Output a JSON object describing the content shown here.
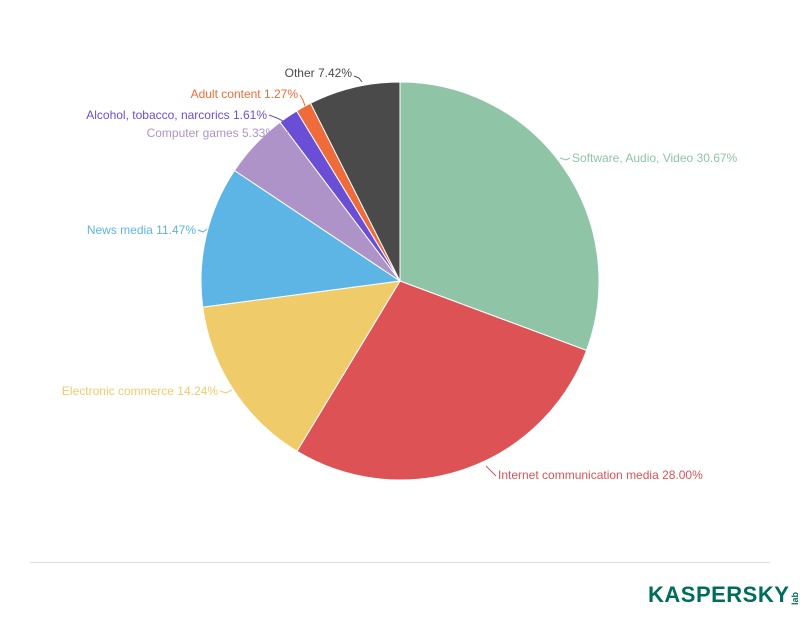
{
  "chart_data": {
    "type": "pie",
    "slices": [
      {
        "label": "Software, Audio, Video",
        "value": 30.67,
        "display": "Software, Audio, Video 30.67%",
        "color": "#8fc4a7"
      },
      {
        "label": "Internet communication media",
        "value": 28.0,
        "display": "Internet communication media 28.00%",
        "color": "#dc5255"
      },
      {
        "label": "Electronic commerce",
        "value": 14.24,
        "display": "Electronic commerce 14.24%",
        "color": "#efcb6a"
      },
      {
        "label": "News media",
        "value": 11.47,
        "display": "News media 11.47%",
        "color": "#5db5e5"
      },
      {
        "label": "Computer games",
        "value": 5.33,
        "display": "Computer games 5.33%",
        "color": "#ae93c8"
      },
      {
        "label": "Alcohol, tobacco, narcorics",
        "value": 1.61,
        "display": "Alcohol, tobacco, narcorics 1.61%",
        "color": "#6a4fd6"
      },
      {
        "label": "Adult content",
        "value": 1.27,
        "display": "Adult content 1.27%",
        "color": "#f06b3a"
      },
      {
        "label": "Other",
        "value": 7.42,
        "display": "Other 7.42%",
        "color": "#4a4a4a"
      }
    ]
  },
  "brand": {
    "logo_text": "KASPERSKY",
    "logo_sub": "lab",
    "color": "#006d5c"
  }
}
